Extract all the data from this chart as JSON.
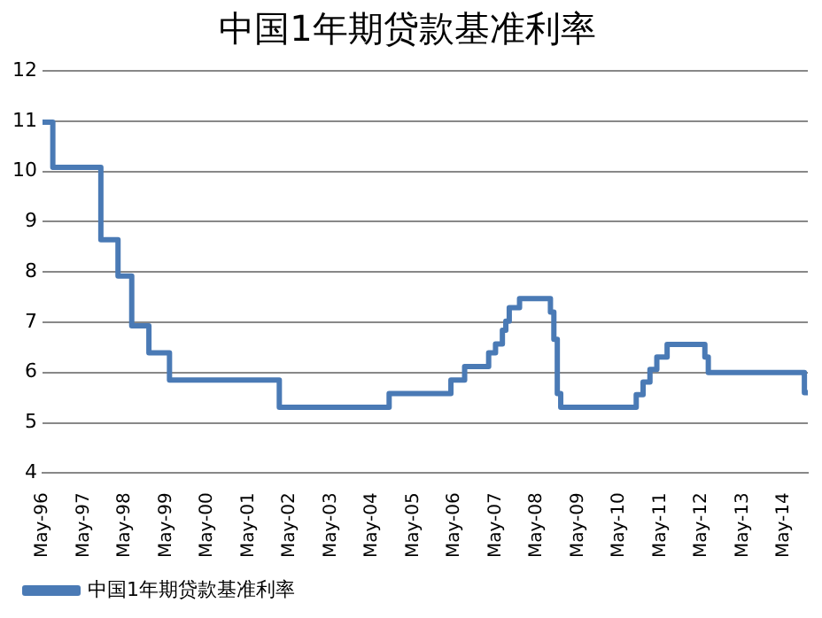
{
  "chart_data": {
    "type": "step",
    "title": "中国1年期贷款基准利率",
    "x": [
      "1996-05",
      "1996-08",
      "1997-10",
      "1998-03",
      "1998-07",
      "1998-12",
      "1999-06",
      "2002-02",
      "2004-10",
      "2006-04",
      "2006-08",
      "2007-03",
      "2007-05",
      "2007-07",
      "2007-08",
      "2007-09",
      "2007-12",
      "2008-09",
      "2008-10",
      "2008-11",
      "2008-12",
      "2010-10",
      "2010-12",
      "2011-02",
      "2011-04",
      "2011-07",
      "2012-06",
      "2012-07",
      "2014-11",
      "2014-12"
    ],
    "series": [
      {
        "name": "中国1年期贷款基准利率",
        "color": "#4a7ab5",
        "values": [
          10.98,
          10.08,
          8.64,
          7.92,
          6.93,
          6.39,
          5.85,
          5.31,
          5.58,
          5.85,
          6.12,
          6.39,
          6.57,
          6.84,
          7.02,
          7.29,
          7.47,
          7.2,
          6.66,
          5.58,
          5.31,
          5.56,
          5.81,
          6.06,
          6.31,
          6.56,
          6.31,
          6.0,
          5.6,
          5.6
        ]
      }
    ],
    "xlim": [
      "1996-05",
      "2014-12"
    ],
    "xticks": [
      {
        "value": "1996-05",
        "label": "May-96"
      },
      {
        "value": "1997-05",
        "label": "May-97"
      },
      {
        "value": "1998-05",
        "label": "May-98"
      },
      {
        "value": "1999-05",
        "label": "May-99"
      },
      {
        "value": "2000-05",
        "label": "May-00"
      },
      {
        "value": "2001-05",
        "label": "May-01"
      },
      {
        "value": "2002-05",
        "label": "May-02"
      },
      {
        "value": "2003-05",
        "label": "May-03"
      },
      {
        "value": "2004-05",
        "label": "May-04"
      },
      {
        "value": "2005-05",
        "label": "May-05"
      },
      {
        "value": "2006-05",
        "label": "May-06"
      },
      {
        "value": "2007-05",
        "label": "May-07"
      },
      {
        "value": "2008-05",
        "label": "May-08"
      },
      {
        "value": "2009-05",
        "label": "May-09"
      },
      {
        "value": "2010-05",
        "label": "May-10"
      },
      {
        "value": "2011-05",
        "label": "May-11"
      },
      {
        "value": "2012-05",
        "label": "May-12"
      },
      {
        "value": "2013-05",
        "label": "May-13"
      },
      {
        "value": "2014-05",
        "label": "May-14"
      }
    ],
    "ylim": [
      4,
      12
    ],
    "yticks": [
      4,
      5,
      6,
      7,
      8,
      9,
      10,
      11,
      12
    ],
    "grid": "y",
    "legend": "bottom left",
    "marker": "none",
    "line_style": "solid"
  }
}
